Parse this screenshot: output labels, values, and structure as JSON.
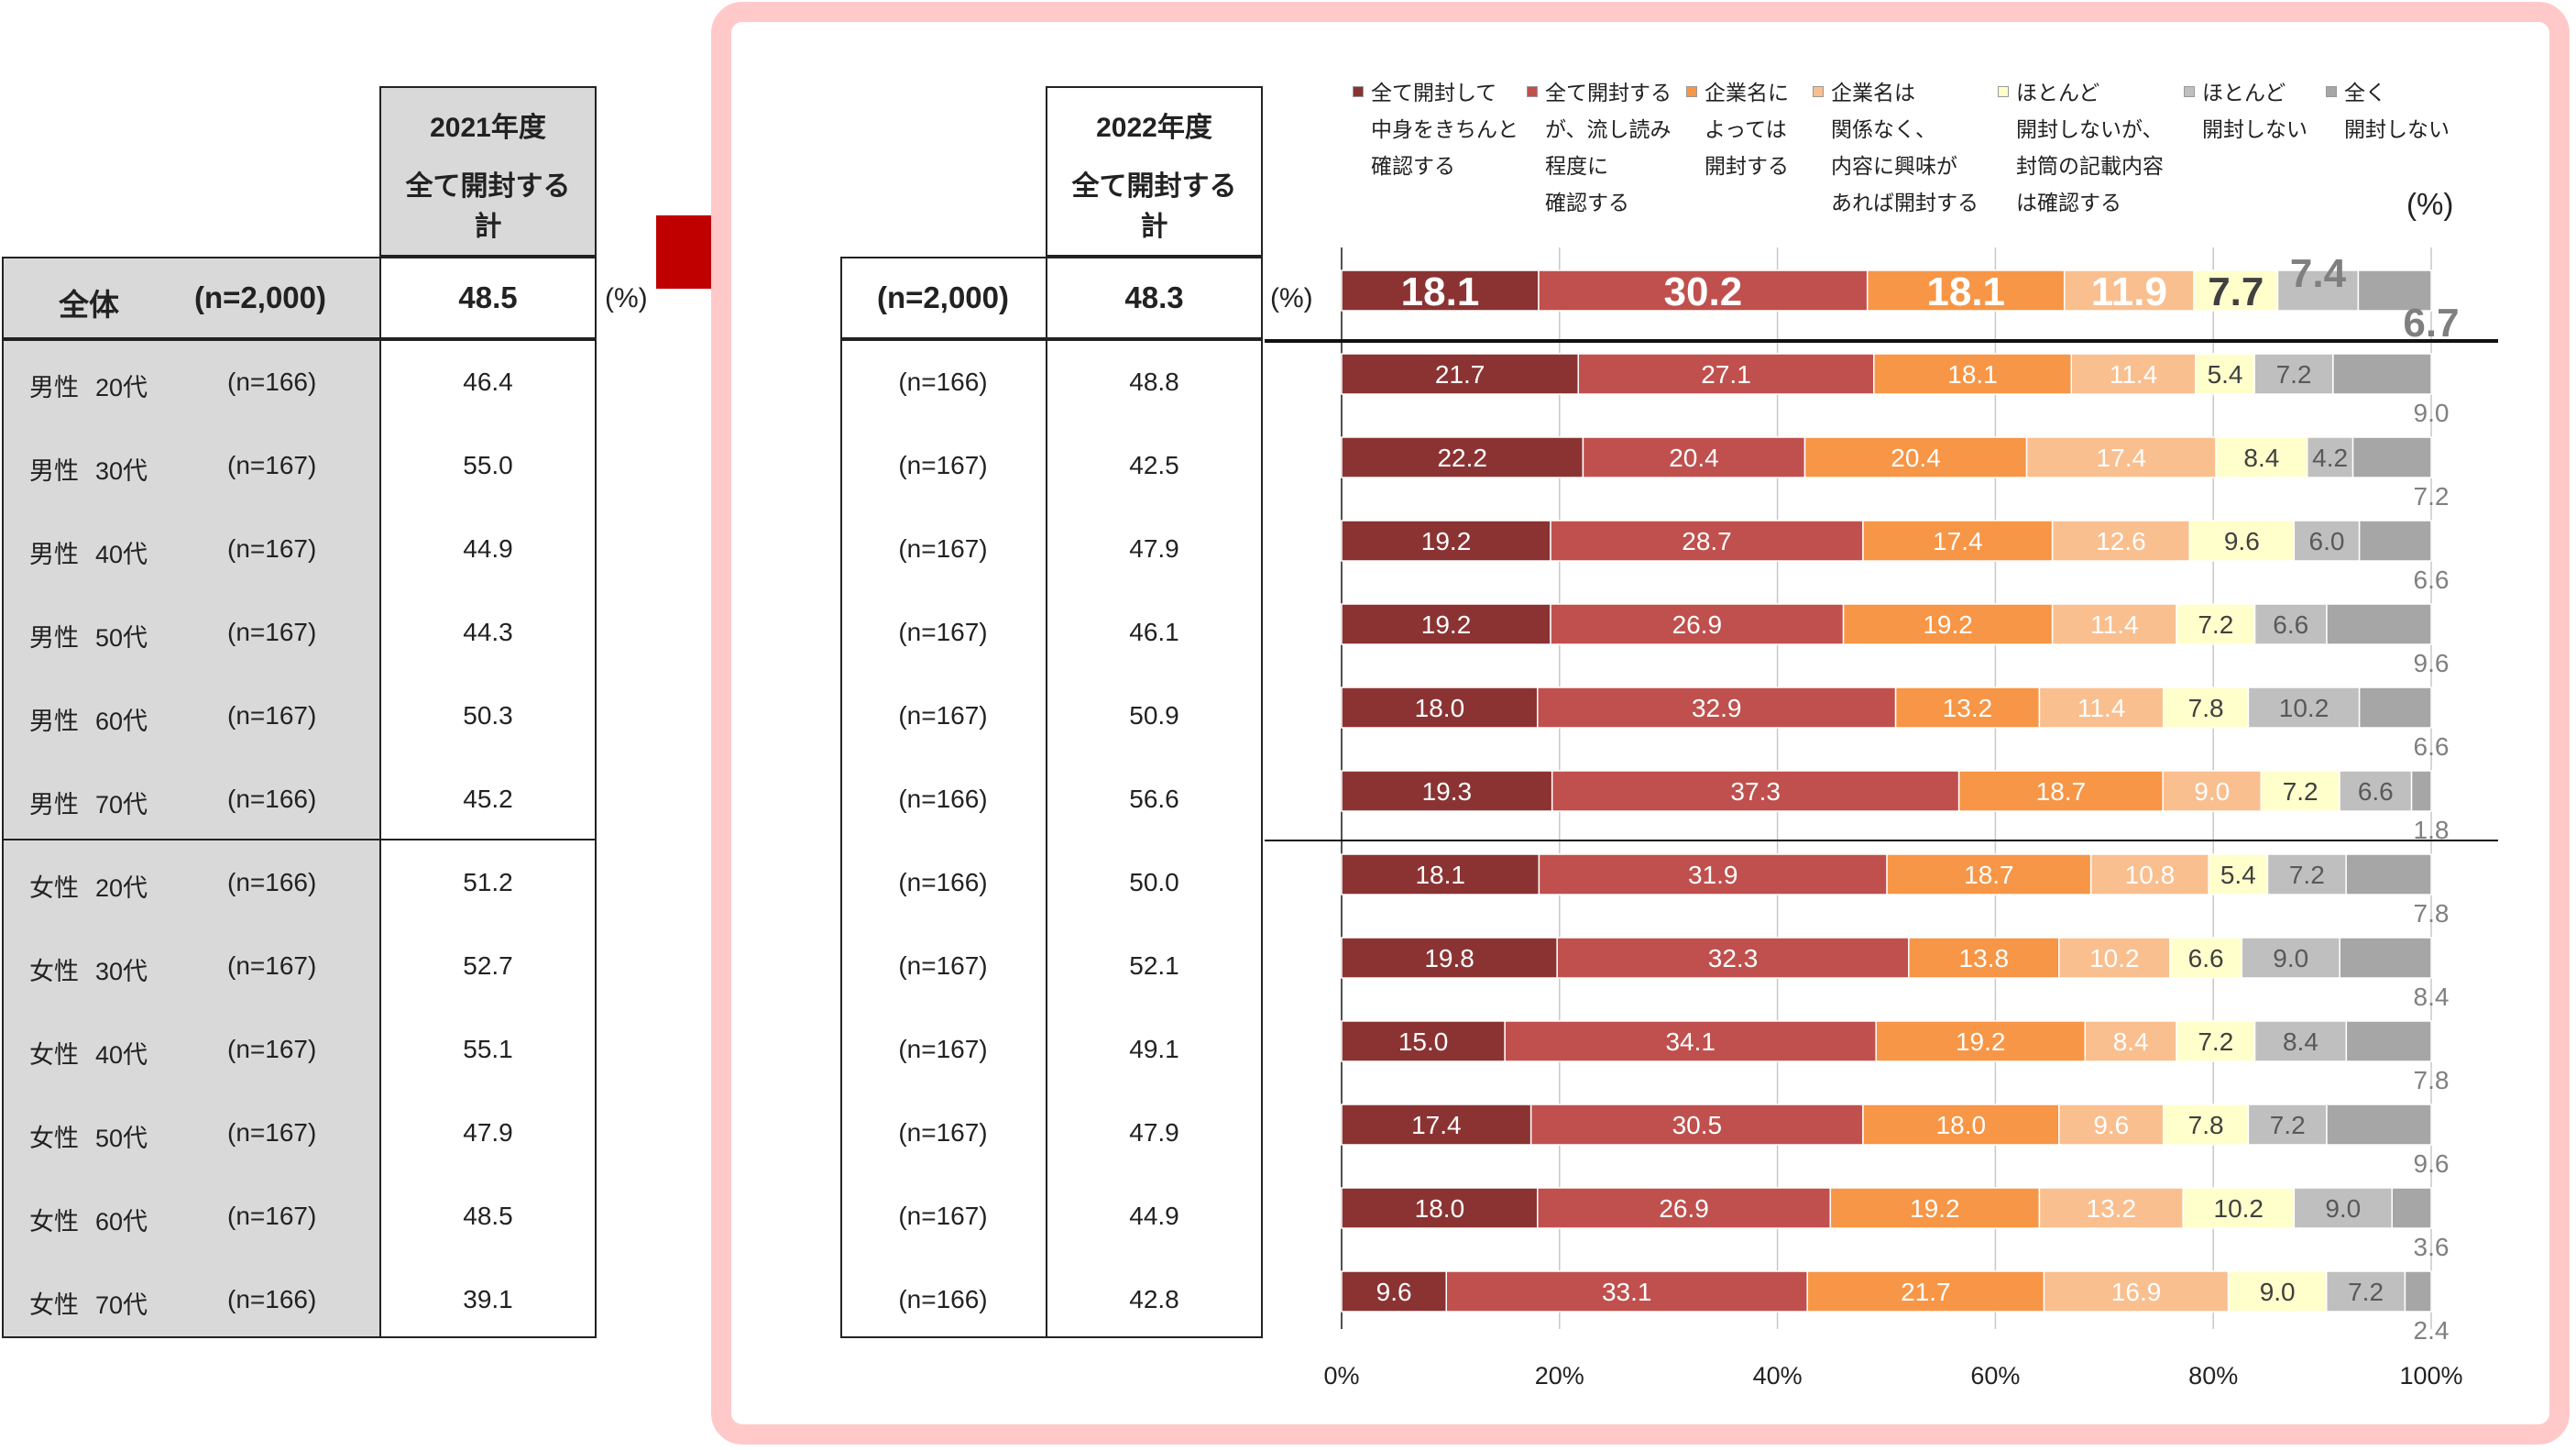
{
  "table2021": {
    "year": "2021年度",
    "col_label": "全て開封する計",
    "col_label_1": "全て開封する",
    "col_label_2": "計",
    "total_label": "全体",
    "total_n": "(n=2,000)",
    "total_value": "48.5",
    "unit": "(%)",
    "rows": [
      {
        "group": "男性",
        "age": "20代",
        "n": "(n=166)",
        "value": "46.4"
      },
      {
        "group": "男性",
        "age": "30代",
        "n": "(n=167)",
        "value": "55.0"
      },
      {
        "group": "男性",
        "age": "40代",
        "n": "(n=167)",
        "value": "44.9"
      },
      {
        "group": "男性",
        "age": "50代",
        "n": "(n=167)",
        "value": "44.3"
      },
      {
        "group": "男性",
        "age": "60代",
        "n": "(n=167)",
        "value": "50.3"
      },
      {
        "group": "男性",
        "age": "70代",
        "n": "(n=166)",
        "value": "45.2"
      },
      {
        "group": "女性",
        "age": "20代",
        "n": "(n=166)",
        "value": "51.2"
      },
      {
        "group": "女性",
        "age": "30代",
        "n": "(n=167)",
        "value": "52.7"
      },
      {
        "group": "女性",
        "age": "40代",
        "n": "(n=167)",
        "value": "55.1"
      },
      {
        "group": "女性",
        "age": "50代",
        "n": "(n=167)",
        "value": "47.9"
      },
      {
        "group": "女性",
        "age": "60代",
        "n": "(n=167)",
        "value": "48.5"
      },
      {
        "group": "女性",
        "age": "70代",
        "n": "(n=166)",
        "value": "39.1"
      }
    ]
  },
  "table2022": {
    "year": "2022年度",
    "col_label_1": "全て開封する",
    "col_label_2": "計",
    "total_n": "(n=2,000)",
    "total_value": "48.3",
    "unit": "(%)",
    "rows": [
      {
        "n": "(n=166)",
        "value": "48.8"
      },
      {
        "n": "(n=167)",
        "value": "42.5"
      },
      {
        "n": "(n=167)",
        "value": "47.9"
      },
      {
        "n": "(n=167)",
        "value": "46.1"
      },
      {
        "n": "(n=167)",
        "value": "50.9"
      },
      {
        "n": "(n=166)",
        "value": "56.6"
      },
      {
        "n": "(n=166)",
        "value": "50.0"
      },
      {
        "n": "(n=167)",
        "value": "52.1"
      },
      {
        "n": "(n=167)",
        "value": "49.1"
      },
      {
        "n": "(n=167)",
        "value": "47.9"
      },
      {
        "n": "(n=167)",
        "value": "44.9"
      },
      {
        "n": "(n=166)",
        "value": "42.8"
      }
    ]
  },
  "chart_data": {
    "type": "bar",
    "orientation": "horizontal-stacked-100",
    "unit_label": "(%)",
    "xlim": [
      0,
      100
    ],
    "ticks": [
      "0%",
      "20%",
      "40%",
      "60%",
      "80%",
      "100%"
    ],
    "legend_position": "top",
    "series": [
      {
        "name": "全て開封して中身をきちんと確認する",
        "lines": [
          "全て開封して",
          "中身をきちんと",
          "確認する"
        ],
        "color": "#8b3333"
      },
      {
        "name": "全て開封するが、流し読み程度に確認する",
        "lines": [
          "全て開封する",
          "が、流し読み",
          "程度に",
          "確認する"
        ],
        "color": "#c0504d"
      },
      {
        "name": "企業名によっては開封する",
        "lines": [
          "企業名に",
          "よっては",
          "開封する"
        ],
        "color": "#f79646"
      },
      {
        "name": "企業名は関係なく、内容に興味があれば開封する",
        "lines": [
          "企業名は",
          "関係なく、",
          "内容に興味が",
          "あれば開封する"
        ],
        "color": "#fabf8f"
      },
      {
        "name": "ほとんど開封しないが、封筒の記載内容は確認する",
        "lines": [
          "ほとんど",
          "開封しないが、",
          "封筒の記載内容",
          "は確認する"
        ],
        "color": "#ffffcc"
      },
      {
        "name": "ほとんど開封しない",
        "lines": [
          "ほとんど",
          "開封しない"
        ],
        "color": "#bfbfbf"
      },
      {
        "name": "全く開封しない",
        "lines": [
          "全く",
          "開封しない"
        ],
        "color": "#a6a6a6"
      }
    ],
    "rows": [
      {
        "label": "(n=2,000)",
        "values": [
          18.1,
          30.2,
          18.1,
          11.9,
          7.7,
          7.4,
          6.7
        ]
      },
      {
        "label": "男性 20代",
        "values": [
          21.7,
          27.1,
          18.1,
          11.4,
          5.4,
          7.2,
          9.0
        ]
      },
      {
        "label": "男性 30代",
        "values": [
          22.2,
          20.4,
          20.4,
          17.4,
          8.4,
          4.2,
          7.2
        ]
      },
      {
        "label": "男性 40代",
        "values": [
          19.2,
          28.7,
          17.4,
          12.6,
          9.6,
          6.0,
          6.6
        ]
      },
      {
        "label": "男性 50代",
        "values": [
          19.2,
          26.9,
          19.2,
          11.4,
          7.2,
          6.6,
          9.6
        ]
      },
      {
        "label": "男性 60代",
        "values": [
          18.0,
          32.9,
          13.2,
          11.4,
          7.8,
          10.2,
          6.6
        ]
      },
      {
        "label": "男性 70代",
        "values": [
          19.3,
          37.3,
          18.7,
          9.0,
          7.2,
          6.6,
          1.8
        ]
      },
      {
        "label": "女性 20代",
        "values": [
          18.1,
          31.9,
          18.7,
          10.8,
          5.4,
          7.2,
          7.8
        ]
      },
      {
        "label": "女性 30代",
        "values": [
          19.8,
          32.3,
          13.8,
          10.2,
          6.6,
          9.0,
          8.4
        ]
      },
      {
        "label": "女性 40代",
        "values": [
          15.0,
          34.1,
          19.2,
          8.4,
          7.2,
          8.4,
          7.8
        ]
      },
      {
        "label": "女性 50代",
        "values": [
          17.4,
          30.5,
          18.0,
          9.6,
          7.8,
          7.2,
          9.6
        ]
      },
      {
        "label": "女性 60代",
        "values": [
          18.0,
          26.9,
          19.2,
          13.2,
          10.2,
          9.0,
          3.6
        ]
      },
      {
        "label": "女性 70代",
        "values": [
          9.6,
          33.1,
          21.7,
          16.9,
          9.0,
          7.2,
          2.4
        ]
      }
    ]
  }
}
